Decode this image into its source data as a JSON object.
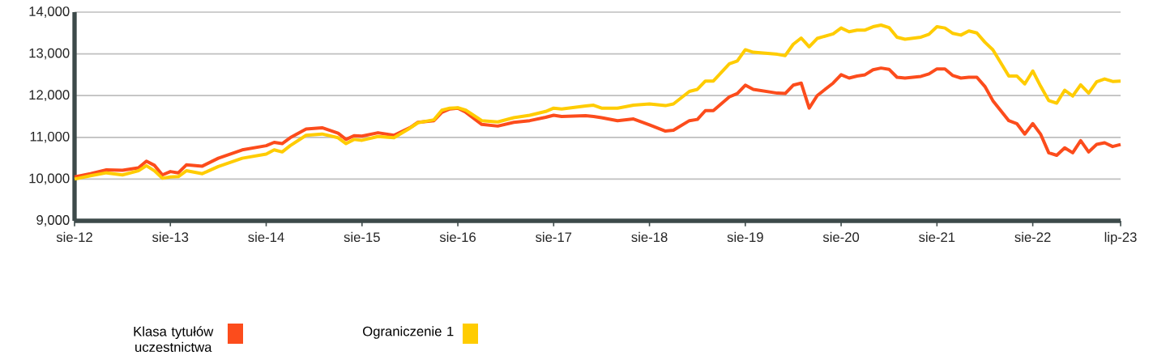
{
  "chart_data": {
    "type": "line",
    "x": [
      "2012-08",
      "2012-10",
      "2012-12",
      "2013-02",
      "2013-04",
      "2013-05",
      "2013-06",
      "2013-07",
      "2013-08",
      "2013-09",
      "2013-10",
      "2013-12",
      "2014-02",
      "2014-05",
      "2014-08",
      "2014-09",
      "2014-10",
      "2014-11",
      "2015-01",
      "2015-03",
      "2015-05",
      "2015-06",
      "2015-07",
      "2015-08",
      "2015-10",
      "2015-12",
      "2016-02",
      "2016-03",
      "2016-05",
      "2016-06",
      "2016-07",
      "2016-08",
      "2016-09",
      "2016-11",
      "2017-01",
      "2017-03",
      "2017-05",
      "2017-07",
      "2017-08",
      "2017-09",
      "2017-12",
      "2018-01",
      "2018-02",
      "2018-04",
      "2018-06",
      "2018-08",
      "2018-10",
      "2018-11",
      "2019-01",
      "2019-02",
      "2019-03",
      "2019-04",
      "2019-06",
      "2019-07",
      "2019-08",
      "2019-09",
      "2019-12",
      "2020-01",
      "2020-02",
      "2020-03",
      "2020-04",
      "2020-05",
      "2020-07",
      "2020-08",
      "2020-09",
      "2020-10",
      "2020-11",
      "2020-12",
      "2021-01",
      "2021-02",
      "2021-03",
      "2021-04",
      "2021-06",
      "2021-07",
      "2021-08",
      "2021-09",
      "2021-10",
      "2021-11",
      "2021-12",
      "2022-01",
      "2022-02",
      "2022-03",
      "2022-05",
      "2022-06",
      "2022-07",
      "2022-08",
      "2022-09",
      "2022-10",
      "2022-11",
      "2022-12",
      "2023-01",
      "2023-02",
      "2023-03",
      "2023-04",
      "2023-05",
      "2023-06",
      "2023-07"
    ],
    "series": [
      {
        "name": "Klasa tytułów uczestnictwa",
        "color": "#fc4c1c",
        "values": [
          10050,
          10130,
          10220,
          10210,
          10270,
          10430,
          10330,
          10100,
          10180,
          10150,
          10340,
          10310,
          10500,
          10700,
          10800,
          10880,
          10850,
          10990,
          11200,
          11230,
          11100,
          10950,
          11040,
          11030,
          11110,
          11050,
          11230,
          11360,
          11400,
          11600,
          11680,
          11700,
          11600,
          11310,
          11270,
          11360,
          11400,
          11480,
          11530,
          11500,
          11520,
          11500,
          11470,
          11400,
          11440,
          11300,
          11150,
          11170,
          11400,
          11430,
          11640,
          11640,
          11970,
          12050,
          12250,
          12150,
          12060,
          12050,
          12250,
          12300,
          11700,
          12000,
          12300,
          12500,
          12420,
          12470,
          12500,
          12620,
          12660,
          12630,
          12440,
          12420,
          12460,
          12520,
          12640,
          12640,
          12480,
          12420,
          12440,
          12440,
          12220,
          11880,
          11400,
          11330,
          11080,
          11330,
          11070,
          10630,
          10570,
          10750,
          10630,
          10920,
          10650,
          10830,
          10870,
          10780,
          10830
        ]
      },
      {
        "name": "Ograniczenie 1",
        "color": "#ffcc00",
        "values": [
          10000,
          10080,
          10150,
          10100,
          10200,
          10320,
          10200,
          10020,
          10050,
          10060,
          10200,
          10130,
          10300,
          10500,
          10600,
          10700,
          10650,
          10800,
          11050,
          11080,
          10990,
          10850,
          10950,
          10930,
          11020,
          10990,
          11220,
          11350,
          11420,
          11650,
          11700,
          11710,
          11650,
          11400,
          11370,
          11470,
          11530,
          11620,
          11700,
          11680,
          11750,
          11770,
          11700,
          11700,
          11770,
          11800,
          11760,
          11800,
          12100,
          12150,
          12350,
          12350,
          12760,
          12830,
          13100,
          13040,
          12990,
          12960,
          13230,
          13380,
          13170,
          13370,
          13480,
          13620,
          13530,
          13570,
          13570,
          13650,
          13690,
          13630,
          13400,
          13350,
          13400,
          13470,
          13650,
          13620,
          13490,
          13450,
          13550,
          13500,
          13280,
          13100,
          12470,
          12470,
          12280,
          12590,
          12220,
          11880,
          11820,
          12130,
          11990,
          12260,
          12060,
          12330,
          12400,
          12340,
          12350
        ]
      }
    ],
    "xlim": [
      "2012-08",
      "2023-07"
    ],
    "xticks": [
      {
        "value": "2012-08",
        "label": "sie-12"
      },
      {
        "value": "2013-08",
        "label": "sie-13"
      },
      {
        "value": "2014-08",
        "label": "sie-14"
      },
      {
        "value": "2015-08",
        "label": "sie-15"
      },
      {
        "value": "2016-08",
        "label": "sie-16"
      },
      {
        "value": "2017-08",
        "label": "sie-17"
      },
      {
        "value": "2018-08",
        "label": "sie-18"
      },
      {
        "value": "2019-08",
        "label": "sie-19"
      },
      {
        "value": "2020-08",
        "label": "sie-20"
      },
      {
        "value": "2021-08",
        "label": "sie-21"
      },
      {
        "value": "2022-08",
        "label": "sie-22"
      },
      {
        "value": "2023-07",
        "label": "lip-23"
      }
    ],
    "ylim": [
      9000,
      14000
    ],
    "yticks": [
      {
        "value": 9000,
        "label": "9,000"
      },
      {
        "value": 10000,
        "label": "10,000"
      },
      {
        "value": 11000,
        "label": "11,000"
      },
      {
        "value": 12000,
        "label": "12,000"
      },
      {
        "value": 13000,
        "label": "13,000"
      },
      {
        "value": 14000,
        "label": "14,000"
      }
    ],
    "grid": "y",
    "legend": "bottom",
    "marker": "none",
    "line_style": "solid"
  }
}
